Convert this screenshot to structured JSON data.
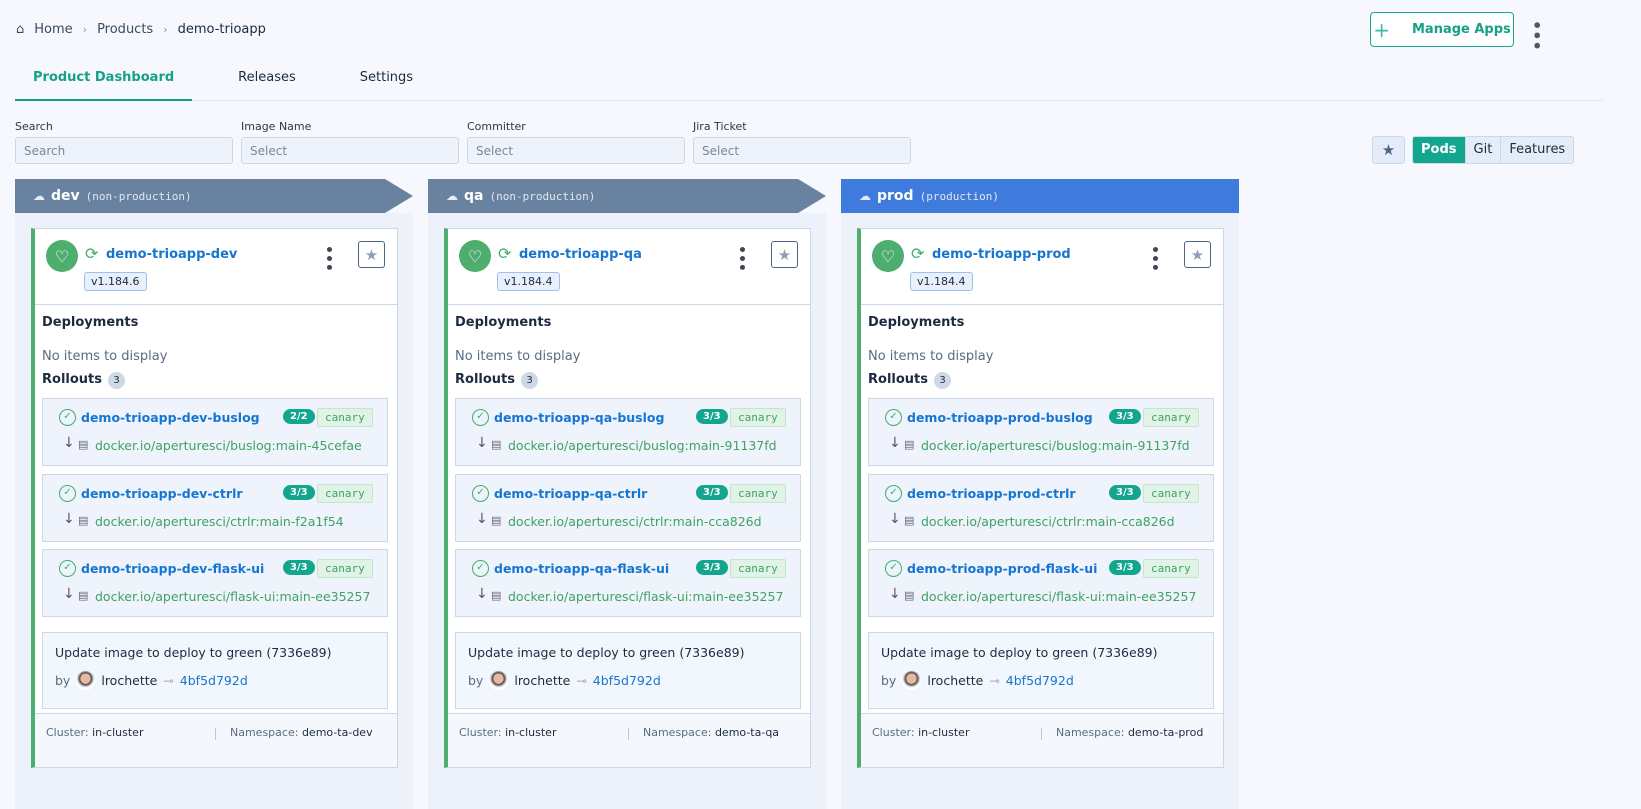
{
  "breadcrumb": {
    "home": "Home",
    "products": "Products",
    "current": "demo-trioapp"
  },
  "header": {
    "manage_apps": "Manage Apps"
  },
  "tabs": [
    {
      "label": "Product Dashboard",
      "active": true
    },
    {
      "label": "Releases"
    },
    {
      "label": "Settings"
    }
  ],
  "filters": [
    {
      "label": "Search",
      "placeholder": "Search"
    },
    {
      "label": "Image Name",
      "placeholder": "Select"
    },
    {
      "label": "Committer",
      "placeholder": "Select"
    },
    {
      "label": "Jira Ticket",
      "placeholder": "Select"
    }
  ],
  "view_toggle": {
    "options": [
      "Pods",
      "Git",
      "Features"
    ],
    "selected": "Pods"
  },
  "colors": {
    "accent": "#13a68e",
    "nonprod": "#6882a0",
    "prod": "#3f7bdc",
    "healthy": "#4eae6e"
  },
  "environments": [
    {
      "name": "dev",
      "type": "(non-production)",
      "prod": false,
      "app": "demo-trioapp-dev",
      "version": "v1.184.6",
      "deployments_label": "Deployments",
      "deployments_empty": "No items to display",
      "rollouts_label": "Rollouts",
      "rollouts_count": "3",
      "rollouts": [
        {
          "name": "demo-trioapp-dev-buslog",
          "ready": "2/2",
          "strategy": "canary",
          "image": "docker.io/aperturesci/buslog:main-45cefae"
        },
        {
          "name": "demo-trioapp-dev-ctrlr",
          "ready": "3/3",
          "strategy": "canary",
          "image": "docker.io/aperturesci/ctrlr:main-f2a1f54"
        },
        {
          "name": "demo-trioapp-dev-flask-ui",
          "ready": "3/3",
          "strategy": "canary",
          "image": "docker.io/aperturesci/flask-ui:main-ee35257"
        }
      ],
      "commit": {
        "message": "Update image to deploy to green (7336e89)",
        "by": "by",
        "user": "lrochette",
        "sha": "4bf5d792d"
      },
      "cluster_label": "Cluster:",
      "cluster": "in-cluster",
      "namespace_label": "Namespace:",
      "namespace": "demo-ta-dev"
    },
    {
      "name": "qa",
      "type": "(non-production)",
      "prod": false,
      "app": "demo-trioapp-qa",
      "version": "v1.184.4",
      "deployments_label": "Deployments",
      "deployments_empty": "No items to display",
      "rollouts_label": "Rollouts",
      "rollouts_count": "3",
      "rollouts": [
        {
          "name": "demo-trioapp-qa-buslog",
          "ready": "3/3",
          "strategy": "canary",
          "image": "docker.io/aperturesci/buslog:main-91137fd"
        },
        {
          "name": "demo-trioapp-qa-ctrlr",
          "ready": "3/3",
          "strategy": "canary",
          "image": "docker.io/aperturesci/ctrlr:main-cca826d"
        },
        {
          "name": "demo-trioapp-qa-flask-ui",
          "ready": "3/3",
          "strategy": "canary",
          "image": "docker.io/aperturesci/flask-ui:main-ee35257"
        }
      ],
      "commit": {
        "message": "Update image to deploy to green (7336e89)",
        "by": "by",
        "user": "lrochette",
        "sha": "4bf5d792d"
      },
      "cluster_label": "Cluster:",
      "cluster": "in-cluster",
      "namespace_label": "Namespace:",
      "namespace": "demo-ta-qa"
    },
    {
      "name": "prod",
      "type": "(production)",
      "prod": true,
      "app": "demo-trioapp-prod",
      "version": "v1.184.4",
      "deployments_label": "Deployments",
      "deployments_empty": "No items to display",
      "rollouts_label": "Rollouts",
      "rollouts_count": "3",
      "rollouts": [
        {
          "name": "demo-trioapp-prod-buslog",
          "ready": "3/3",
          "strategy": "canary",
          "image": "docker.io/aperturesci/buslog:main-91137fd"
        },
        {
          "name": "demo-trioapp-prod-ctrlr",
          "ready": "3/3",
          "strategy": "canary",
          "image": "docker.io/aperturesci/ctrlr:main-cca826d"
        },
        {
          "name": "demo-trioapp-prod-flask-ui",
          "ready": "3/3",
          "strategy": "canary",
          "image": "docker.io/aperturesci/flask-ui:main-ee35257"
        }
      ],
      "commit": {
        "message": "Update image to deploy to green (7336e89)",
        "by": "by",
        "user": "lrochette",
        "sha": "4bf5d792d"
      },
      "cluster_label": "Cluster:",
      "cluster": "in-cluster",
      "namespace_label": "Namespace:",
      "namespace": "demo-ta-prod"
    }
  ]
}
